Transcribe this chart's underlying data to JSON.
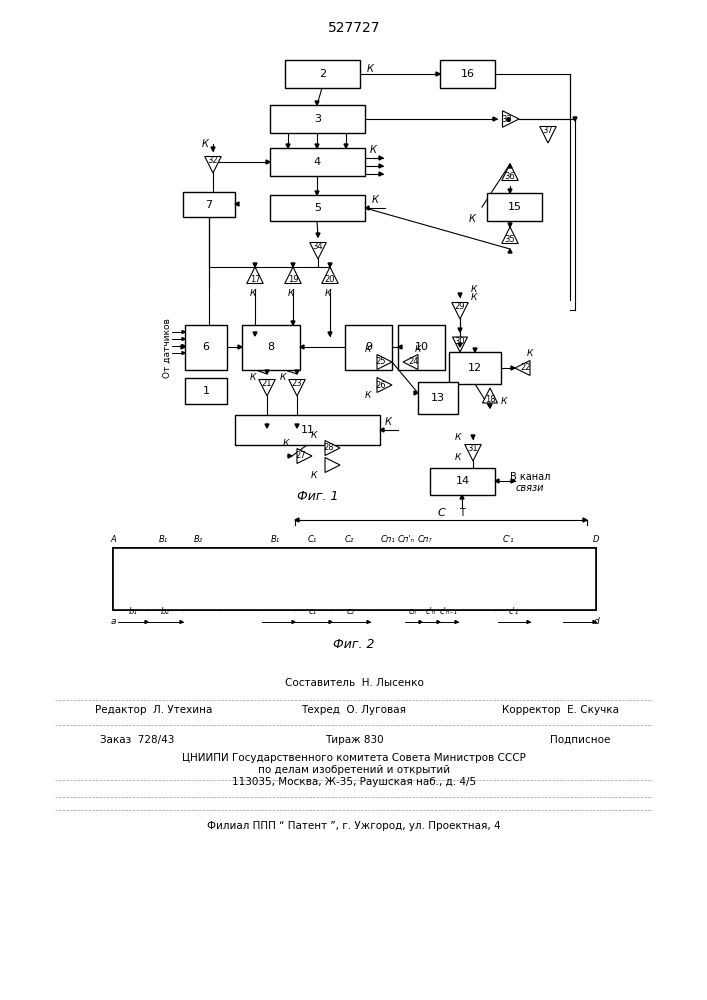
{
  "title": "527727",
  "fig1_caption": "Фиг. 1",
  "fig2_caption": "Фиг. 2",
  "bg_color": "#ffffff",
  "lc": "#000000",
  "sestavitel": "Составитель  Н. Лысенко",
  "redaktor": "Редактор  Л. Утехина",
  "tehred": "Техред  О. Луговая",
  "korrektor": "Корректор  Е. Скучка",
  "zakaz": "Заказ  728/43",
  "tirazh": "Тираж 830",
  "podpisnoe": "Подписное",
  "cniip1": "ЦНИИПИ Государственного комитета Совета Министров СССР",
  "cniip2": "по делам изобретений и открытий",
  "cniip3": "113035, Москва, Ж-35, Раушская наб., д. 4/5",
  "filial": "Филиал ППП “ Патент ”, г. Ужгород, ул. Проектная, 4"
}
